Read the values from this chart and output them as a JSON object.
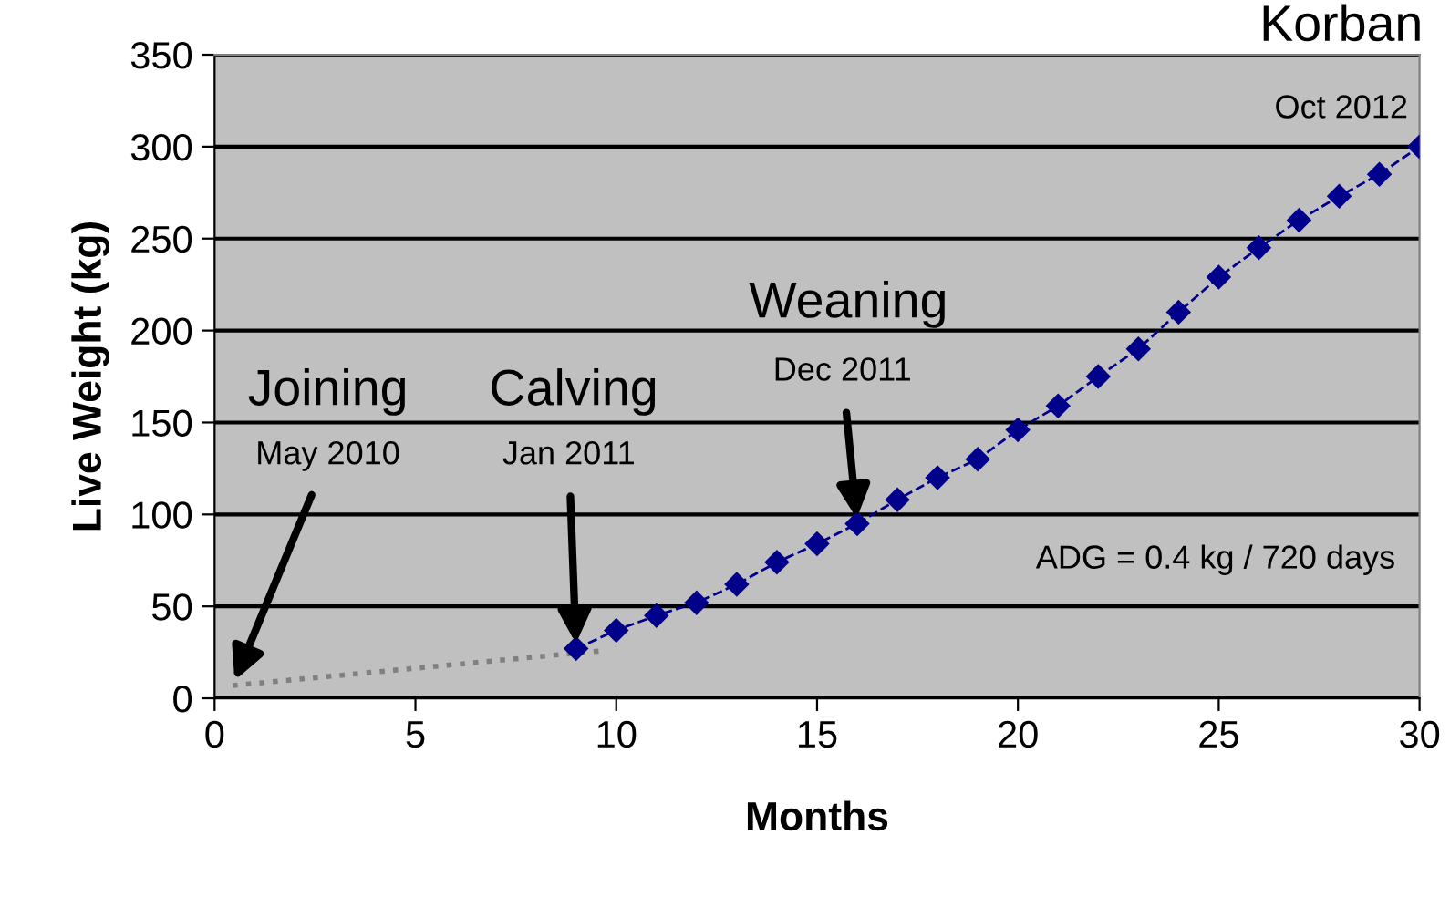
{
  "chart_data": {
    "type": "line",
    "xlabel": "Months",
    "ylabel": "Live Weight (kg)",
    "xlim": [
      0,
      30
    ],
    "xticks": [
      0,
      5,
      10,
      15,
      20,
      25,
      30
    ],
    "ylim": [
      0,
      350
    ],
    "yticks": [
      0,
      50,
      100,
      150,
      200,
      250,
      300,
      350
    ],
    "grid": "y",
    "series": [
      {
        "color": "#808080",
        "x": [
          0.45,
          9.7
        ],
        "values": [
          7,
          26
        ],
        "line_style": "dotted",
        "marker": "none"
      },
      {
        "color": "#00008b",
        "x": [
          9,
          10,
          11,
          12,
          13,
          14,
          15,
          16,
          17,
          18,
          19,
          20,
          21,
          22,
          23,
          24,
          25,
          26,
          27,
          28,
          29,
          30
        ],
        "values": [
          27,
          37,
          45,
          52,
          62,
          74,
          84,
          95,
          108,
          120,
          130,
          146,
          159,
          175,
          190,
          210,
          229,
          245,
          260,
          273,
          285,
          300
        ],
        "line_style": "dashed",
        "marker": "diamond"
      }
    ],
    "annotations": [
      "Joining",
      {
        "text": "May 2010",
        "x": 0.45,
        "y": 7
      },
      "Calving",
      {
        "text": "Jan 2011",
        "x": 9,
        "y": 27
      },
      "Weaning",
      {
        "text": "Dec 2011",
        "x": 16,
        "y": 95
      },
      "Korban",
      "Oct 2012",
      "ADG = 0.4 kg / 720 days"
    ]
  }
}
